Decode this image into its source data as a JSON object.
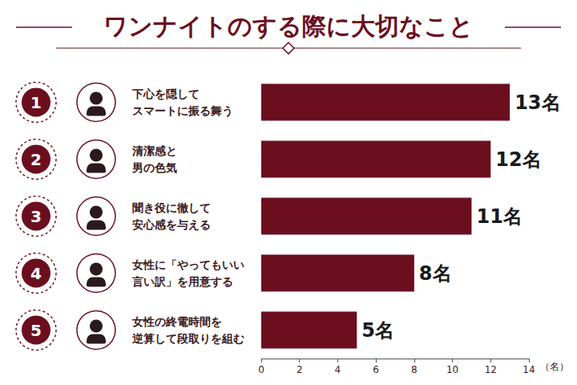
{
  "chart_data": {
    "type": "bar",
    "orientation": "horizontal",
    "title": "ワンナイトのする際に大切なこと",
    "categories": [
      "下心を隠して\nスマートに振る舞う",
      "清潔感と\n男の色気",
      "聞き役に徹して\n安心感を与える",
      "女性に「やってもいい\n言い訳」を用意する",
      "女性の終電時間を\n逆算して段取りを組む"
    ],
    "ranks": [
      1,
      2,
      3,
      4,
      5
    ],
    "values": [
      13,
      12,
      11,
      8,
      5
    ],
    "value_labels": [
      "13名",
      "12名",
      "11名",
      "8名",
      "5名"
    ],
    "data_labels": true,
    "color": "#6b0f1f",
    "xlabel": "（名）",
    "xlim": [
      0,
      14
    ],
    "xticks": [
      0,
      2,
      4,
      6,
      8,
      10,
      12,
      14
    ],
    "grid": false
  }
}
